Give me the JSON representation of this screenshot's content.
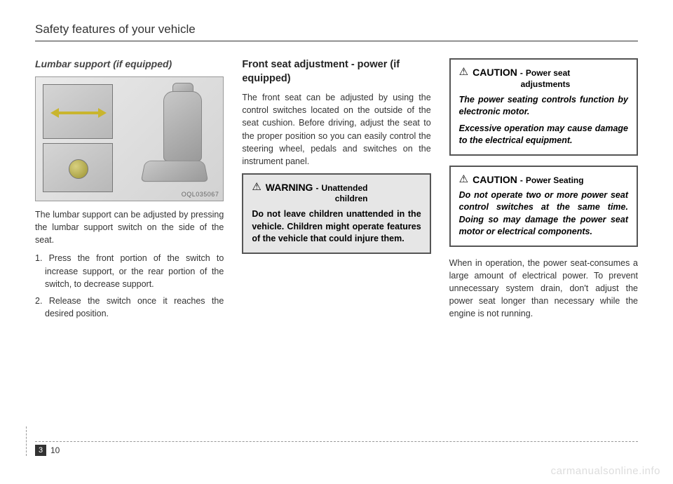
{
  "header": "Safety features of your vehicle",
  "col1": {
    "title": "Lumbar support (if equipped)",
    "fig_label": "OQL035067",
    "p1": "The lumbar support can be adjusted by pressing the lumbar support switch on the side of the seat.",
    "li1": "1. Press the front portion of the switch to increase support, or the rear portion of the switch, to decrease support.",
    "li2": "2. Release the switch once it reaches the desired position."
  },
  "col2": {
    "title": "Front seat adjustment - power (if equipped)",
    "p1": "The front seat can be adjusted by using the control switches located on the outside of the seat cushion. Before driving, adjust the seat to the proper position so you can easily control the steering wheel, pedals and switches on the instrument panel.",
    "warning": {
      "main": "WARNING",
      "sub_dash": "-",
      "sub1": "Unattended",
      "sub2": "children",
      "body": "Do not leave children unattended in the vehicle. Children might operate features of the vehicle that could injure them."
    }
  },
  "col3": {
    "caution1": {
      "main": "CAUTION",
      "sub_dash": "-",
      "sub1": "Power seat",
      "sub2": "adjustments",
      "body1": "The power seating controls function by electronic motor.",
      "body2": "Excessive operation may cause damage to the electrical equipment."
    },
    "caution2": {
      "main": "CAUTION",
      "sub_dash": "-",
      "sub": "Power Seating",
      "body": "Do not operate two or more power seat control switches at the same time. Doing so may damage the power seat motor or electrical components."
    },
    "p1": "When in operation, the power seat-consumes a large amount of electrical power. To prevent unnecessary system drain, don't adjust the power seat longer than necessary while the engine is not running."
  },
  "footer": {
    "chapter": "3",
    "page": "10"
  },
  "watermark": "carmanualsonline.info"
}
